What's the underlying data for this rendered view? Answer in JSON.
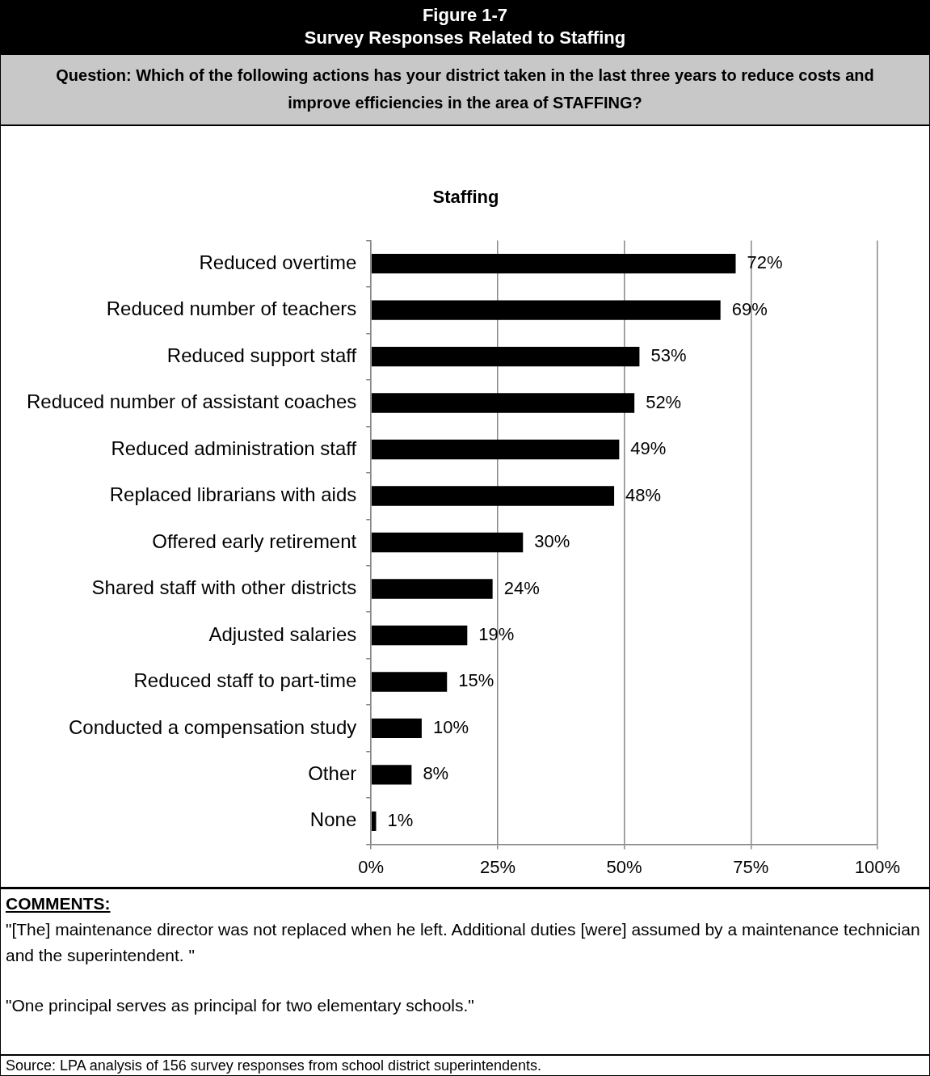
{
  "chart_data": {
    "type": "bar",
    "orientation": "horizontal",
    "title": "Figure 1-7",
    "subtitle": "Survey Responses Related to Staffing",
    "annotations": [
      "Question: Which of the following actions has your district taken in the last three years to reduce costs and improve efficiencies in the area of STAFFING?",
      "Staffing",
      "COMMENTS:",
      "\"[The] maintenance director was not replaced when he left.  Additional duties [were] assumed by a maintenance technician and the superintendent. \"",
      "\"One principal serves as principal for two elementary schools.\"",
      "Source: LPA analysis of 156 survey responses from school district superintendents."
    ],
    "categories": [
      "Reduced overtime",
      "Reduced number of teachers",
      "Reduced support staff",
      "Reduced number of assistant coaches",
      "Reduced administration staff",
      "Replaced librarians with aids",
      "Offered early retirement",
      "Shared staff with other districts",
      "Adjusted salaries",
      "Reduced staff to part-time",
      "Conducted a compensation study",
      "Other",
      "None"
    ],
    "values": [
      72,
      69,
      53,
      52,
      49,
      48,
      30,
      24,
      19,
      15,
      10,
      8,
      1
    ],
    "value_labels": [
      "72%",
      "69%",
      "53%",
      "52%",
      "49%",
      "48%",
      "30%",
      "24%",
      "19%",
      "15%",
      "10%",
      "8%",
      "1%"
    ],
    "color": "#000000",
    "grid": "x",
    "legend": false,
    "xlim": [
      0,
      100
    ],
    "xticks": [
      {
        "value": 0,
        "label": "0%"
      },
      {
        "value": 25,
        "label": "25%"
      },
      {
        "value": 50,
        "label": "50%"
      },
      {
        "value": 75,
        "label": "75%"
      },
      {
        "value": 100,
        "label": "100%"
      }
    ]
  }
}
